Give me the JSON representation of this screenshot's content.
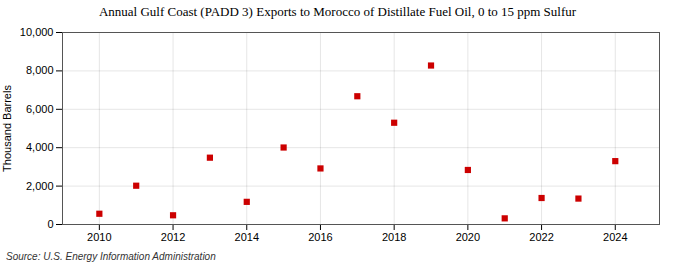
{
  "chart_data": {
    "type": "scatter",
    "title": "Annual Gulf Coast (PADD 3) Exports to Morocco of Distillate Fuel Oil, 0 to 15 ppm Sulfur",
    "ylabel": "Thousand Barrels",
    "source": "Source: U.S. Energy Information Administration",
    "x": [
      2010,
      2011,
      2012,
      2013,
      2014,
      2015,
      2016,
      2017,
      2018,
      2019,
      2020,
      2021,
      2022,
      2023,
      2024
    ],
    "values": [
      560,
      2020,
      480,
      3480,
      1180,
      4010,
      2920,
      6680,
      5300,
      8280,
      2840,
      320,
      1380,
      1350,
      3300
    ],
    "color": "#cc0000",
    "marker": "square",
    "xlim": [
      2009.0,
      2025.2
    ],
    "xticks": [
      2010,
      2012,
      2014,
      2016,
      2018,
      2020,
      2022,
      2024
    ],
    "ylim": [
      0,
      10000
    ],
    "yticks": [
      0,
      {
        "value": 2000,
        "label": "2,000"
      },
      {
        "value": 4000,
        "label": "4,000"
      },
      {
        "value": 6000,
        "label": "6,000"
      },
      {
        "value": 8000,
        "label": "8,000"
      },
      {
        "value": 10000,
        "label": "10,000"
      }
    ],
    "grid": true
  }
}
